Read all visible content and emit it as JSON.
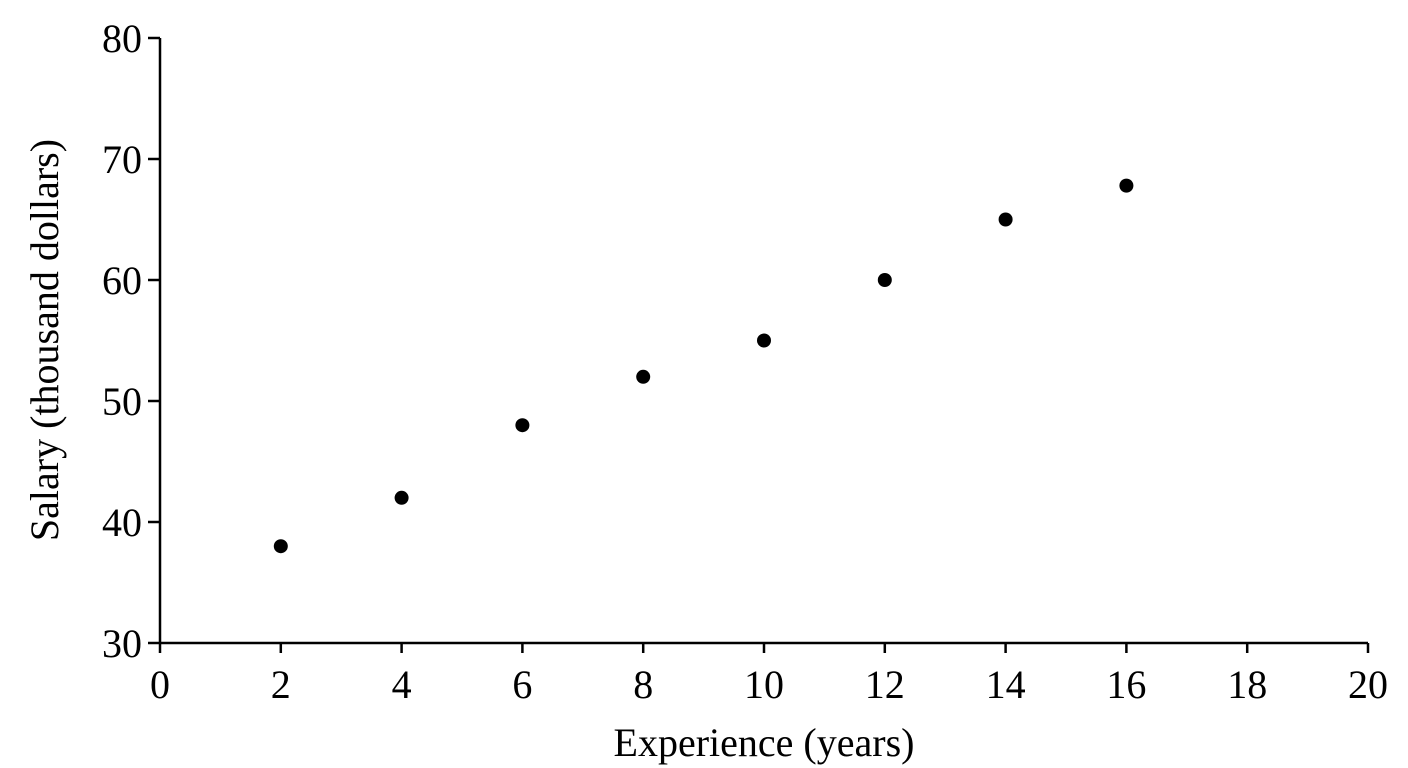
{
  "chart_data": {
    "type": "scatter",
    "title": "",
    "xlabel": "Experience (years)",
    "ylabel": "Salary (thousand dollars)",
    "xlim": [
      0,
      20
    ],
    "ylim": [
      30,
      80
    ],
    "xticks": [
      0,
      2,
      4,
      6,
      8,
      10,
      12,
      14,
      16,
      18,
      20
    ],
    "yticks": [
      30,
      40,
      50,
      60,
      70,
      80
    ],
    "grid": false,
    "legend": "none",
    "marker_color": "#000000",
    "points": [
      {
        "x": 2,
        "y": 38
      },
      {
        "x": 4,
        "y": 42
      },
      {
        "x": 6,
        "y": 48
      },
      {
        "x": 8,
        "y": 52
      },
      {
        "x": 10,
        "y": 55
      },
      {
        "x": 12,
        "y": 60
      },
      {
        "x": 14,
        "y": 65
      },
      {
        "x": 16,
        "y": 67.8
      }
    ]
  }
}
